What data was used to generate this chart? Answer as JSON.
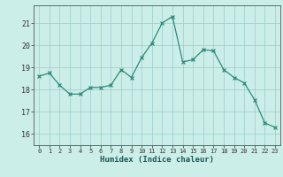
{
  "x": [
    0,
    1,
    2,
    3,
    4,
    5,
    6,
    7,
    8,
    9,
    10,
    11,
    12,
    13,
    14,
    15,
    16,
    17,
    18,
    19,
    20,
    21,
    22,
    23
  ],
  "y": [
    18.6,
    18.75,
    18.2,
    17.8,
    17.8,
    18.1,
    18.1,
    18.2,
    18.9,
    18.55,
    19.45,
    20.1,
    21.0,
    21.3,
    19.25,
    19.35,
    19.8,
    19.75,
    18.9,
    18.55,
    18.3,
    17.55,
    16.5,
    16.3
  ],
  "xlabel": "Humidex (Indice chaleur)",
  "ylim": [
    15.5,
    21.8
  ],
  "xlim": [
    -0.5,
    23.5
  ],
  "xticks": [
    0,
    1,
    2,
    3,
    4,
    5,
    6,
    7,
    8,
    9,
    10,
    11,
    12,
    13,
    14,
    15,
    16,
    17,
    18,
    19,
    20,
    21,
    22,
    23
  ],
  "yticks": [
    16,
    17,
    18,
    19,
    20,
    21
  ],
  "line_color": "#2e8b7a",
  "marker_color": "#2e8b7a",
  "bg_color": "#cceee8",
  "grid_color": "#99cccc",
  "xlabel_fontsize": 6.5,
  "xtick_fontsize": 5.0,
  "ytick_fontsize": 6.0
}
